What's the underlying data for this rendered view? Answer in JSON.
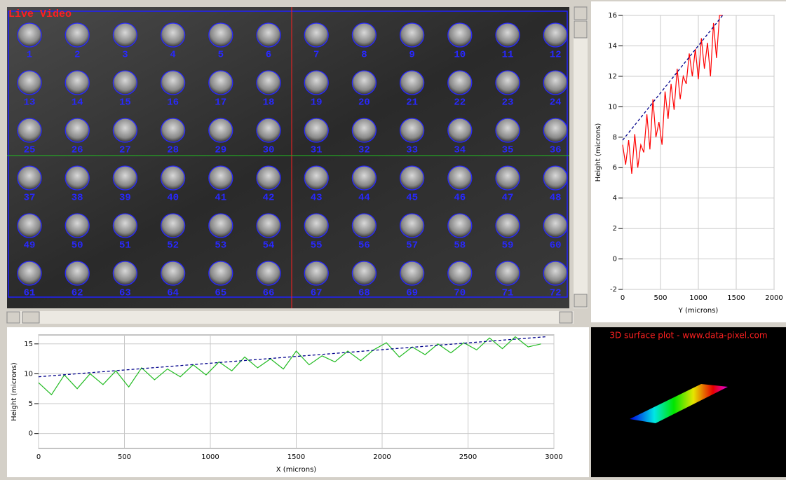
{
  "video": {
    "label": "Live Video",
    "wells": [
      "1",
      "2",
      "3",
      "4",
      "5",
      "6",
      "7",
      "8",
      "9",
      "10",
      "11",
      "12",
      "13",
      "14",
      "15",
      "16",
      "17",
      "18",
      "19",
      "20",
      "21",
      "22",
      "23",
      "24",
      "25",
      "26",
      "27",
      "28",
      "29",
      "30",
      "31",
      "32",
      "33",
      "34",
      "35",
      "36",
      "37",
      "38",
      "39",
      "40",
      "41",
      "42",
      "43",
      "44",
      "45",
      "46",
      "47",
      "48",
      "49",
      "50",
      "51",
      "52",
      "53",
      "54",
      "55",
      "56",
      "57",
      "58",
      "59",
      "60",
      "61",
      "62",
      "63",
      "64",
      "65",
      "66",
      "67",
      "68",
      "69",
      "70",
      "71",
      "72"
    ]
  },
  "chart_data": [
    {
      "type": "line",
      "x_label": "Y (microns)",
      "y_label": "Height (microns)",
      "xlim": [
        0,
        2000
      ],
      "ylim": [
        -2,
        16
      ],
      "xticks": [
        0,
        500,
        1000,
        1500,
        2000
      ],
      "yticks": [
        -2,
        0,
        2,
        4,
        6,
        8,
        10,
        12,
        14,
        16
      ],
      "grid": true,
      "series": [
        {
          "color": "#ff0000",
          "x": [
            0,
            40,
            80,
            120,
            160,
            200,
            240,
            280,
            320,
            360,
            400,
            440,
            480,
            520,
            560,
            600,
            640,
            680,
            720,
            760,
            800,
            840,
            880,
            920,
            960,
            1000,
            1040,
            1080,
            1120,
            1160,
            1200,
            1240,
            1280,
            1320
          ],
          "values": [
            7.5,
            6.2,
            7.8,
            5.6,
            8.2,
            6.0,
            7.5,
            7.0,
            9.5,
            7.2,
            10.5,
            8.0,
            9.0,
            7.5,
            11,
            9.2,
            11.5,
            9.8,
            12.5,
            10.5,
            12,
            11.5,
            13.5,
            12,
            13.8,
            11.8,
            14.5,
            12.5,
            14.2,
            12,
            15.5,
            13.2,
            16,
            16
          ]
        },
        {
          "color": "#00008b",
          "dash": true,
          "x": [
            0,
            1320
          ],
          "values": [
            7.8,
            16
          ]
        }
      ]
    },
    {
      "type": "line",
      "x_label": "X (microns)",
      "y_label": "Height (microns)",
      "xlim": [
        0,
        3000
      ],
      "ylim": [
        -2.5,
        16.5
      ],
      "xticks": [
        0,
        500,
        1000,
        1500,
        2000,
        2500,
        3000
      ],
      "yticks": [
        0,
        5,
        10,
        15
      ],
      "grid": true,
      "series": [
        {
          "color": "#22bb22",
          "x": [
            0,
            75,
            150,
            225,
            300,
            375,
            450,
            525,
            600,
            675,
            750,
            825,
            900,
            975,
            1050,
            1125,
            1200,
            1275,
            1350,
            1425,
            1500,
            1575,
            1650,
            1725,
            1800,
            1875,
            1950,
            2025,
            2100,
            2175,
            2250,
            2325,
            2400,
            2475,
            2550,
            2625,
            2700,
            2775,
            2850,
            2925
          ],
          "values": [
            8.5,
            6.5,
            9.8,
            7.5,
            10,
            8.2,
            10.5,
            7.8,
            11,
            9,
            10.8,
            9.5,
            11.5,
            9.8,
            12,
            10.5,
            12.8,
            11,
            12.5,
            10.8,
            13.8,
            11.5,
            13,
            12,
            13.8,
            12.2,
            14,
            15.2,
            12.8,
            14.5,
            13.2,
            15,
            13.5,
            15.2,
            14,
            16,
            14.2,
            16.2,
            14.5,
            15
          ]
        },
        {
          "color": "#00008b",
          "dash": true,
          "x": [
            0,
            2950
          ],
          "values": [
            9.5,
            16.2
          ]
        }
      ]
    }
  ],
  "surface_plot": {
    "title": "3D surface plot - www.data-pixel.com"
  }
}
